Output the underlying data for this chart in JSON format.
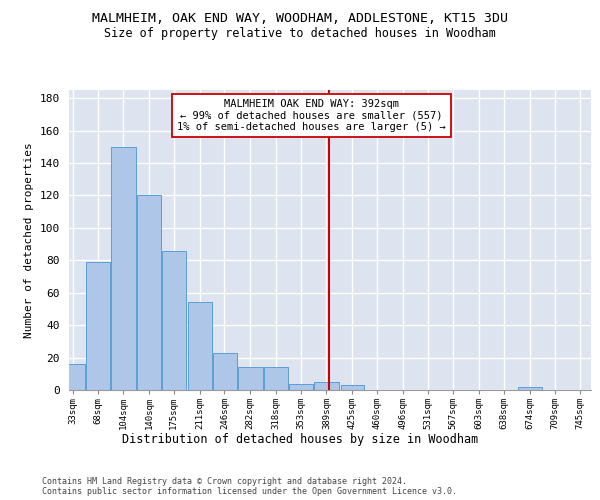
{
  "title1": "MALMHEIM, OAK END WAY, WOODHAM, ADDLESTONE, KT15 3DU",
  "title2": "Size of property relative to detached houses in Woodham",
  "xlabel": "Distribution of detached houses by size in Woodham",
  "ylabel": "Number of detached properties",
  "bins": [
    33,
    68,
    104,
    140,
    175,
    211,
    246,
    282,
    318,
    353,
    389,
    425,
    460,
    496,
    531,
    567,
    603,
    638,
    674,
    709,
    745
  ],
  "values": [
    16,
    79,
    150,
    120,
    86,
    54,
    23,
    14,
    14,
    4,
    5,
    3,
    0,
    0,
    0,
    0,
    0,
    0,
    2,
    0
  ],
  "bar_color": "#aec6e8",
  "bar_edge_color": "#5a9fd4",
  "vline_x": 392,
  "vline_color": "#cc0000",
  "annotation_text": "MALMHEIM OAK END WAY: 392sqm\n← 99% of detached houses are smaller (557)\n1% of semi-detached houses are larger (5) →",
  "annotation_box_color": "#ffffff",
  "annotation_box_edge": "#cc0000",
  "ylim": [
    0,
    185
  ],
  "yticks": [
    0,
    20,
    40,
    60,
    80,
    100,
    120,
    140,
    160,
    180
  ],
  "background_color": "#dde4f0",
  "grid_color": "#ffffff",
  "footer1": "Contains HM Land Registry data © Crown copyright and database right 2024.",
  "footer2": "Contains public sector information licensed under the Open Government Licence v3.0."
}
